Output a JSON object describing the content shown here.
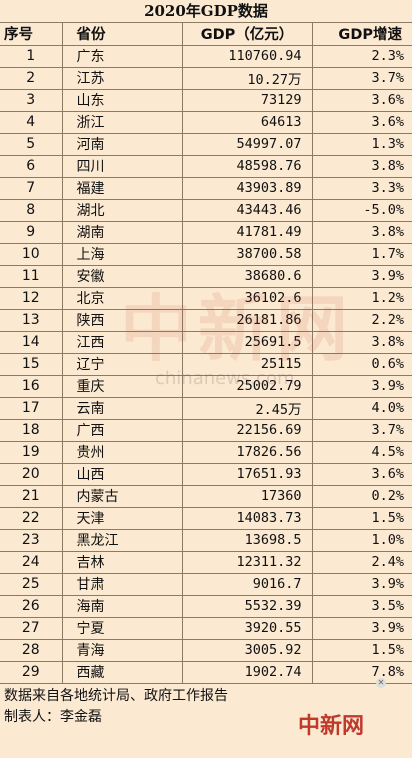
{
  "title": "2020年GDP数据",
  "headers": {
    "index": "序号",
    "province": "省份",
    "gdp": "GDP（亿元）",
    "growth": "GDP增速"
  },
  "rows": [
    {
      "index": "1",
      "province": "广东",
      "gdp": "110760.94",
      "growth": "2.3%"
    },
    {
      "index": "2",
      "province": "江苏",
      "gdp": "10.27万",
      "growth": "3.7%"
    },
    {
      "index": "3",
      "province": "山东",
      "gdp": "73129",
      "growth": "3.6%"
    },
    {
      "index": "4",
      "province": "浙江",
      "gdp": "64613",
      "growth": "3.6%"
    },
    {
      "index": "5",
      "province": "河南",
      "gdp": "54997.07",
      "growth": "1.3%"
    },
    {
      "index": "6",
      "province": "四川",
      "gdp": "48598.76",
      "growth": "3.8%"
    },
    {
      "index": "7",
      "province": "福建",
      "gdp": "43903.89",
      "growth": "3.3%"
    },
    {
      "index": "8",
      "province": "湖北",
      "gdp": "43443.46",
      "growth": "-5.0%"
    },
    {
      "index": "9",
      "province": "湖南",
      "gdp": "41781.49",
      "growth": "3.8%"
    },
    {
      "index": "10",
      "province": "上海",
      "gdp": "38700.58",
      "growth": "1.7%"
    },
    {
      "index": "11",
      "province": "安徽",
      "gdp": "38680.6",
      "growth": "3.9%"
    },
    {
      "index": "12",
      "province": "北京",
      "gdp": "36102.6",
      "growth": "1.2%"
    },
    {
      "index": "13",
      "province": "陕西",
      "gdp": "26181.86",
      "growth": "2.2%"
    },
    {
      "index": "14",
      "province": "江西",
      "gdp": "25691.5",
      "growth": "3.8%"
    },
    {
      "index": "15",
      "province": "辽宁",
      "gdp": "25115",
      "growth": "0.6%"
    },
    {
      "index": "16",
      "province": "重庆",
      "gdp": "25002.79",
      "growth": "3.9%"
    },
    {
      "index": "17",
      "province": "云南",
      "gdp": "2.45万",
      "growth": "4.0%"
    },
    {
      "index": "18",
      "province": "广西",
      "gdp": "22156.69",
      "growth": "3.7%"
    },
    {
      "index": "19",
      "province": "贵州",
      "gdp": "17826.56",
      "growth": "4.5%"
    },
    {
      "index": "20",
      "province": "山西",
      "gdp": "17651.93",
      "growth": "3.6%"
    },
    {
      "index": "21",
      "province": "内蒙古",
      "gdp": "17360",
      "growth": "0.2%"
    },
    {
      "index": "22",
      "province": "天津",
      "gdp": "14083.73",
      "growth": "1.5%"
    },
    {
      "index": "23",
      "province": "黑龙江",
      "gdp": "13698.5",
      "growth": "1.0%"
    },
    {
      "index": "24",
      "province": "吉林",
      "gdp": "12311.32",
      "growth": "2.4%"
    },
    {
      "index": "25",
      "province": "甘肃",
      "gdp": "9016.7",
      "growth": "3.9%"
    },
    {
      "index": "26",
      "province": "海南",
      "gdp": "5532.39",
      "growth": "3.5%"
    },
    {
      "index": "27",
      "province": "宁夏",
      "gdp": "3920.55",
      "growth": "3.9%"
    },
    {
      "index": "28",
      "province": "青海",
      "gdp": "3005.92",
      "growth": "1.5%"
    },
    {
      "index": "29",
      "province": "西藏",
      "gdp": "1902.74",
      "growth": "7.8%"
    }
  ],
  "footer": {
    "source": "数据来自各地统计局、政府工作报告",
    "author": "制表人：李金磊"
  },
  "watermark": {
    "text": "中新网",
    "sub": "chinanews.com"
  },
  "corner_logo": "中新网"
}
